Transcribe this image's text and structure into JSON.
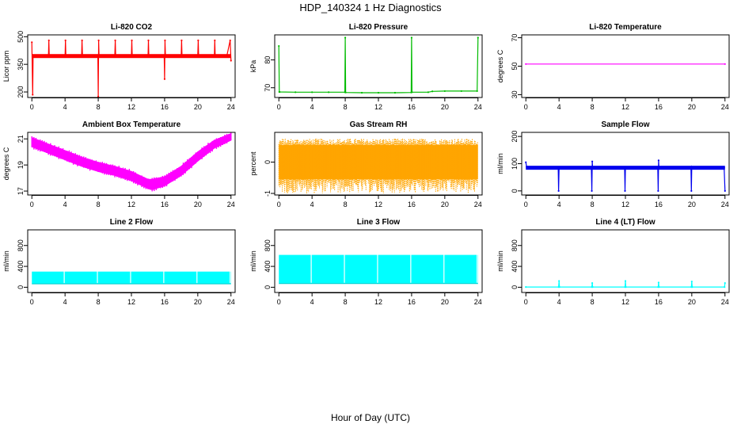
{
  "figure": {
    "title": "HDP_140324  1 Hz Diagnostics",
    "xlabel": "Hour of Day (UTC)"
  },
  "chart_data": [
    {
      "type": "line",
      "title": "Li-820 CO2",
      "ylabel": "Licor ppm",
      "color": "#ff0000",
      "xlim": [
        -0.5,
        24.5
      ],
      "ylim": [
        170,
        510
      ],
      "xticks": [
        0,
        4,
        8,
        12,
        16,
        20,
        24
      ],
      "yticks": [
        200,
        350,
        500
      ],
      "style": "line",
      "x": [
        0,
        0.1,
        0.15,
        0.2,
        0.3,
        1.5,
        2.0,
        2.05,
        2.1,
        3.5,
        4.0,
        4.05,
        4.1,
        5.5,
        6.0,
        6.05,
        6.1,
        7.5,
        7.95,
        8.0,
        8.05,
        8.1,
        9.5,
        10.0,
        10.05,
        10.1,
        11.5,
        12.0,
        12.05,
        12.1,
        13.5,
        14.0,
        14.05,
        14.1,
        15.5,
        15.95,
        16.0,
        16.05,
        16.1,
        17.5,
        18.0,
        18.05,
        18.1,
        19.5,
        20.0,
        20.05,
        20.1,
        21.5,
        22.0,
        22.05,
        22.1,
        23.5,
        23.9,
        24.0
      ],
      "y": [
        470,
        185,
        400,
        400,
        395,
        395,
        395,
        480,
        395,
        395,
        395,
        480,
        395,
        395,
        395,
        480,
        395,
        395,
        395,
        175,
        480,
        395,
        395,
        395,
        480,
        395,
        395,
        395,
        480,
        395,
        395,
        395,
        480,
        395,
        395,
        395,
        270,
        480,
        395,
        395,
        395,
        480,
        395,
        395,
        395,
        480,
        395,
        395,
        395,
        480,
        395,
        395,
        480,
        370
      ]
    },
    {
      "type": "line",
      "title": "Li-820 Pressure",
      "ylabel": "kPa",
      "color": "#00bb00",
      "xlim": [
        -0.5,
        24.5
      ],
      "ylim": [
        66.5,
        89
      ],
      "xticks": [
        0,
        4,
        8,
        12,
        16,
        20,
        24
      ],
      "yticks": [
        70,
        80
      ],
      "style": "line",
      "x": [
        0,
        0.05,
        0.1,
        2,
        4,
        6,
        7.95,
        8.0,
        8.05,
        10,
        12,
        14,
        15.95,
        16.0,
        16.05,
        18,
        18.5,
        20,
        22,
        23.9,
        24.0
      ],
      "y": [
        85,
        68.5,
        68.5,
        68.4,
        68.4,
        68.4,
        68.4,
        88,
        68.3,
        68.2,
        68.2,
        68.2,
        68.3,
        88,
        68.4,
        68.4,
        68.7,
        68.8,
        68.8,
        68.8,
        88
      ]
    },
    {
      "type": "line",
      "title": "Li-820 Temperature",
      "ylabel": "degrees C",
      "color": "#ff00ff",
      "xlim": [
        -0.5,
        24.5
      ],
      "ylim": [
        28,
        72
      ],
      "xticks": [
        0,
        4,
        8,
        12,
        16,
        20,
        24
      ],
      "yticks": [
        30,
        50,
        70
      ],
      "style": "line",
      "x": [
        0,
        24
      ],
      "y": [
        51.5,
        51.5
      ]
    },
    {
      "type": "area",
      "title": "Ambient Box Temperature",
      "ylabel": "degrees C",
      "color": "#ff00ff",
      "xlim": [
        -0.5,
        24.5
      ],
      "ylim": [
        16.7,
        21.5
      ],
      "xticks": [
        0,
        4,
        8,
        12,
        16,
        20,
        24
      ],
      "yticks": [
        17,
        19,
        21
      ],
      "style": "band",
      "x": [
        0,
        2,
        4,
        6,
        8,
        10,
        12,
        14,
        14.5,
        16,
        18,
        20,
        22,
        24
      ],
      "low": [
        20.4,
        19.9,
        19.4,
        18.9,
        18.5,
        18.2,
        17.8,
        17.2,
        17.1,
        17.4,
        18.2,
        19.3,
        20.3,
        20.9
      ],
      "high": [
        21.1,
        20.6,
        20.1,
        19.6,
        19.2,
        18.9,
        18.5,
        17.9,
        17.9,
        18.1,
        18.9,
        20.0,
        20.9,
        21.4
      ]
    },
    {
      "type": "scatter",
      "title": "Gas Stream RH",
      "ylabel": "percent",
      "color": "#ffa500",
      "xlim": [
        -0.5,
        24.5
      ],
      "ylim": [
        -1.05,
        0.95
      ],
      "xticks": [
        0,
        4,
        8,
        12,
        16,
        20,
        24
      ],
      "yticks": [
        -1.0,
        0.0
      ],
      "style": "noise",
      "x": [
        0,
        24
      ],
      "low": [
        -1.0,
        -1.0
      ],
      "high": [
        0.75,
        0.75
      ],
      "core_low": [
        -0.55,
        -0.55
      ],
      "core_high": [
        0.55,
        0.55
      ]
    },
    {
      "type": "line",
      "title": "Sample Flow",
      "ylabel": "ml/min",
      "color": "#0000ee",
      "xlim": [
        -0.5,
        24.5
      ],
      "ylim": [
        -15,
        215
      ],
      "xticks": [
        0,
        4,
        8,
        12,
        16,
        20,
        24
      ],
      "yticks": [
        0,
        100,
        200
      ],
      "style": "line",
      "x": [
        0,
        0.1,
        0.2,
        2,
        3.9,
        3.95,
        4.0,
        4.05,
        6,
        7.9,
        7.95,
        8.0,
        8.05,
        10,
        11.9,
        11.95,
        12.0,
        12.05,
        14,
        15.9,
        15.95,
        16.0,
        16.05,
        18,
        19.9,
        19.95,
        20.0,
        20.05,
        22,
        23.9,
        24.0
      ],
      "y": [
        105,
        88,
        86,
        85,
        84,
        0,
        85,
        84,
        83,
        82,
        0,
        108,
        84,
        84,
        84,
        0,
        85,
        84,
        82,
        81,
        0,
        112,
        82,
        82,
        84,
        0,
        88,
        85,
        85,
        85,
        0
      ]
    },
    {
      "type": "area",
      "title": "Line 2 Flow",
      "ylabel": "ml/min",
      "color": "#00ffff",
      "xlim": [
        -0.5,
        24.5
      ],
      "ylim": [
        -100,
        1100
      ],
      "xticks": [
        0,
        4,
        8,
        12,
        16,
        20,
        24
      ],
      "yticks": [
        0,
        400,
        800
      ],
      "style": "blocks",
      "low": 65,
      "high": 300,
      "gaps": [
        3.9,
        7.9,
        11.9,
        15.9,
        19.9,
        23.9
      ]
    },
    {
      "type": "area",
      "title": "Line 3 Flow",
      "ylabel": "ml/min",
      "color": "#00ffff",
      "xlim": [
        -0.5,
        24.5
      ],
      "ylim": [
        -100,
        1100
      ],
      "xticks": [
        0,
        4,
        8,
        12,
        16,
        20,
        24
      ],
      "yticks": [
        0,
        400,
        800
      ],
      "style": "blocks",
      "low": 70,
      "high": 620,
      "gaps": [
        3.9,
        7.9,
        11.9,
        15.9,
        19.9,
        23.9
      ]
    },
    {
      "type": "line",
      "title": "Line 4 (LT) Flow",
      "ylabel": "ml/min",
      "color": "#00ffff",
      "xlim": [
        -0.5,
        24.5
      ],
      "ylim": [
        -100,
        1100
      ],
      "xticks": [
        0,
        4,
        8,
        12,
        16,
        20,
        24
      ],
      "yticks": [
        0,
        400,
        800
      ],
      "style": "line",
      "x": [
        0,
        3.95,
        4.0,
        4.05,
        7.95,
        8.0,
        8.05,
        11.95,
        12.0,
        12.05,
        15.95,
        16.0,
        16.05,
        19.95,
        20.0,
        20.05,
        23.95,
        24.0
      ],
      "y": [
        5,
        5,
        120,
        5,
        5,
        80,
        5,
        5,
        120,
        5,
        5,
        90,
        5,
        5,
        110,
        5,
        5,
        80
      ]
    }
  ]
}
